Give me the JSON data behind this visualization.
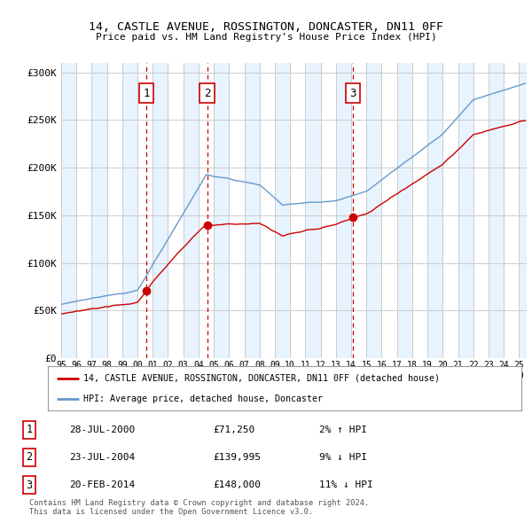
{
  "title1": "14, CASTLE AVENUE, ROSSINGTON, DONCASTER, DN11 0FF",
  "title2": "Price paid vs. HM Land Registry's House Price Index (HPI)",
  "ylabel_ticks": [
    "£0",
    "£50K",
    "£100K",
    "£150K",
    "£200K",
    "£250K",
    "£300K"
  ],
  "ytick_values": [
    0,
    50000,
    100000,
    150000,
    200000,
    250000,
    300000
  ],
  "ylim": [
    0,
    310000
  ],
  "xlim_start": 1995.0,
  "xlim_end": 2025.5,
  "sale_dates": [
    2000.57,
    2004.56,
    2014.13
  ],
  "sale_prices": [
    71250,
    139995,
    148000
  ],
  "sale_labels": [
    "1",
    "2",
    "3"
  ],
  "legend_label_red": "14, CASTLE AVENUE, ROSSINGTON, DONCASTER, DN11 0FF (detached house)",
  "legend_label_blue": "HPI: Average price, detached house, Doncaster",
  "table_rows": [
    [
      "1",
      "28-JUL-2000",
      "£71,250",
      "2% ↑ HPI"
    ],
    [
      "2",
      "23-JUL-2004",
      "£139,995",
      "9% ↓ HPI"
    ],
    [
      "3",
      "20-FEB-2014",
      "£148,000",
      "11% ↓ HPI"
    ]
  ],
  "footnote1": "Contains HM Land Registry data © Crown copyright and database right 2024.",
  "footnote2": "This data is licensed under the Open Government Licence v3.0.",
  "plot_bg_color": "#ffffff",
  "red_color": "#cc0000",
  "blue_color": "#6699cc",
  "vline_color": "#cc0000",
  "grid_color": "#cccccc",
  "band_color": "#ddeeff"
}
